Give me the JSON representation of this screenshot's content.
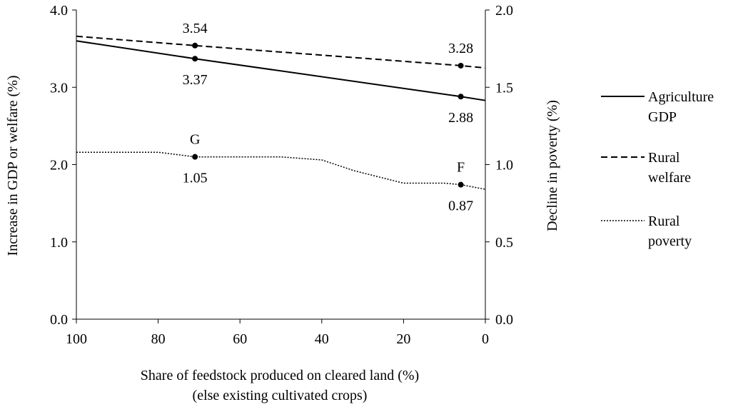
{
  "chart_data": {
    "type": "line",
    "xlabel_lines": [
      "Share of feedstock produced on cleared land (%)",
      "(else existing cultivated crops)"
    ],
    "ylabel_left": "Increase in GDP or welfare (%)",
    "ylabel_right": "Decline in poverty (%)",
    "xlim": [
      100,
      0
    ],
    "ylim_left": [
      0,
      4
    ],
    "ylim_right": [
      0,
      2
    ],
    "x_ticks": [
      "100",
      "80",
      "60",
      "40",
      "20",
      "0"
    ],
    "y_ticks_left": [
      "0.0",
      "1.0",
      "2.0",
      "3.0",
      "4.0"
    ],
    "y_ticks_right": [
      "0.0",
      "0.5",
      "1.0",
      "1.5",
      "2.0"
    ],
    "grid": false,
    "legend_position": "right",
    "series": [
      {
        "name_lines": [
          "Agriculture",
          "GDP"
        ],
        "axis": "left",
        "style": "solid",
        "x": [
          100,
          71,
          6,
          0
        ],
        "y": [
          3.6,
          3.37,
          2.88,
          2.83
        ]
      },
      {
        "name_lines": [
          "Rural",
          "welfare"
        ],
        "axis": "left",
        "style": "dashed",
        "x": [
          100,
          71,
          6,
          0
        ],
        "y": [
          3.66,
          3.54,
          3.28,
          3.25
        ]
      },
      {
        "name_lines": [
          "Rural",
          "poverty"
        ],
        "axis": "right",
        "style": "dotted",
        "x": [
          100,
          80,
          71,
          50,
          40,
          32,
          20,
          10,
          6,
          0
        ],
        "y": [
          1.08,
          1.08,
          1.05,
          1.05,
          1.03,
          0.96,
          0.88,
          0.88,
          0.87,
          0.84
        ]
      }
    ],
    "markers": [
      {
        "series": 0,
        "x": 71,
        "y": 3.37,
        "label": "3.37",
        "label_pos": "below"
      },
      {
        "series": 0,
        "x": 6,
        "y": 2.88,
        "label": "2.88",
        "label_pos": "below"
      },
      {
        "series": 1,
        "x": 71,
        "y": 3.54,
        "label": "3.54",
        "label_pos": "above"
      },
      {
        "series": 1,
        "x": 6,
        "y": 3.28,
        "label": "3.28",
        "label_pos": "above"
      },
      {
        "series": 2,
        "x": 71,
        "y": 1.05,
        "label": "1.05",
        "label_pos": "below",
        "point_label": "G"
      },
      {
        "series": 2,
        "x": 6,
        "y": 0.87,
        "label": "0.87",
        "label_pos": "below",
        "point_label": "F"
      }
    ]
  }
}
